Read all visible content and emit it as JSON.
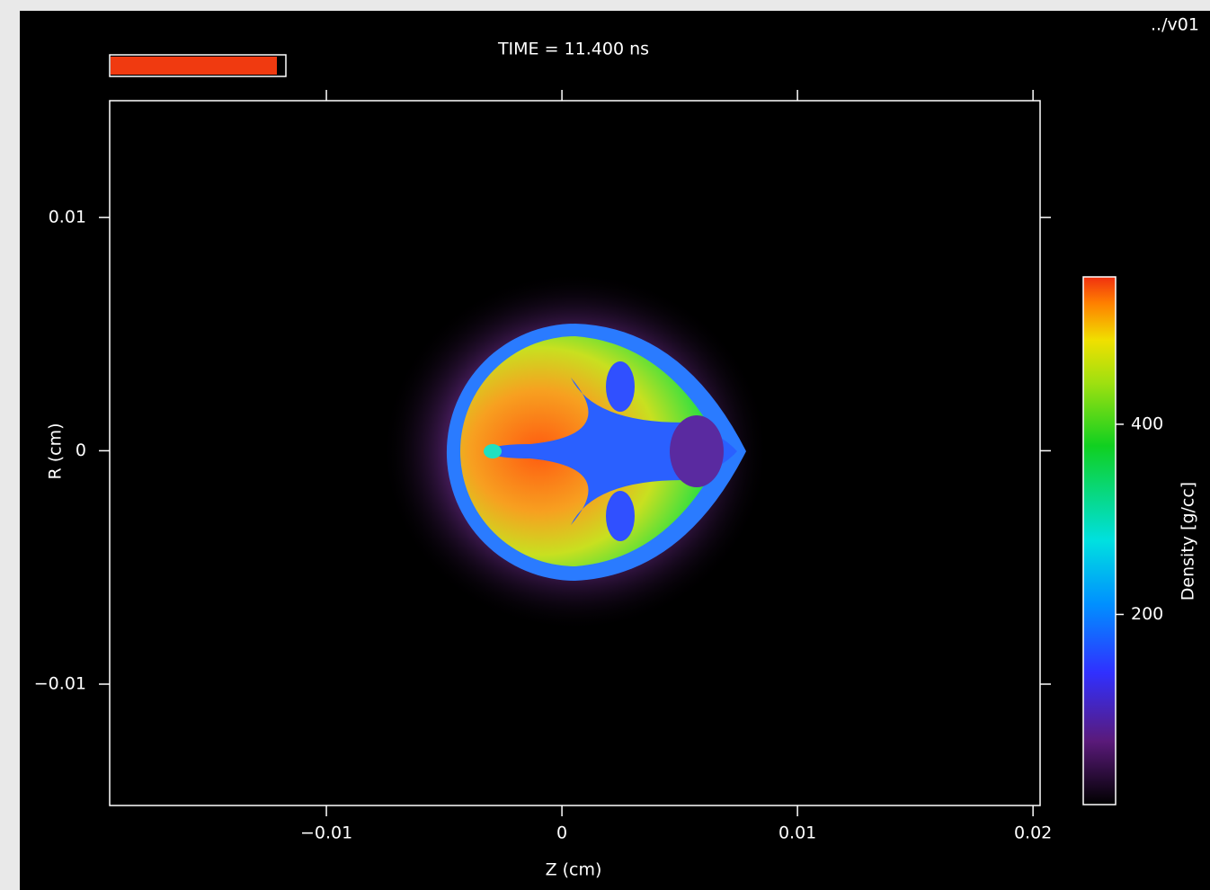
{
  "chart_data": {
    "type": "density_map",
    "title": "TIME =  11.400 ns",
    "corner_label": "../v01",
    "x_label": "Z (cm)",
    "y_label": "R (cm)",
    "xlim": [
      -0.0192,
      0.0203
    ],
    "ylim": [
      -0.0152,
      0.015
    ],
    "xticks": [
      {
        "value": -0.01,
        "label": "−0.01"
      },
      0,
      0.01,
      0.02
    ],
    "yticks": [
      {
        "value": -0.01,
        "label": "−0.01"
      },
      0,
      0.01
    ],
    "colorbar": {
      "label": "Density [g/cc]",
      "lim": [
        0,
        555
      ],
      "ticks": [
        200,
        400
      ]
    }
  }
}
